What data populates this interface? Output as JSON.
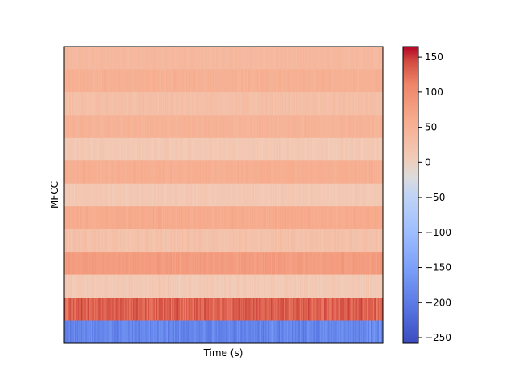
{
  "chart_data": {
    "type": "heatmap",
    "title": "",
    "xlabel": "Time (s)",
    "ylabel": "MFCC",
    "n_coefficients": 13,
    "n_frames": 400,
    "row_order": "top-to-bottom = coefficient 13 down to coefficient 1",
    "row_mean_values": [
      38,
      52,
      28,
      48,
      12,
      55,
      12,
      60,
      25,
      80,
      10,
      132,
      -185
    ],
    "row_spread": [
      8,
      10,
      10,
      10,
      10,
      10,
      10,
      10,
      12,
      12,
      12,
      22,
      32
    ],
    "colorbar": {
      "colormap": "coolwarm",
      "vmin": -258,
      "vmax": 165,
      "ticks": [
        150,
        100,
        50,
        0,
        -50,
        -100,
        -150,
        -200,
        -250
      ],
      "tick_labels": [
        "150",
        "100",
        "50",
        "0",
        "−50",
        "−100",
        "−150",
        "−200",
        "−250"
      ]
    }
  }
}
